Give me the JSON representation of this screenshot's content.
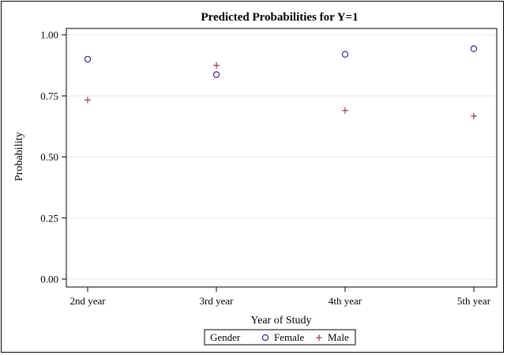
{
  "chart_data": {
    "type": "scatter",
    "title": "Predicted Probabilities for Y=1",
    "xlabel": "Year of Study",
    "ylabel": "Probability",
    "categories": [
      "2nd year",
      "3rd year",
      "4th year",
      "5th year"
    ],
    "ylim": [
      0.0,
      1.0
    ],
    "yticks": [
      "0.00",
      "0.25",
      "0.50",
      "0.75",
      "1.00"
    ],
    "grid": true,
    "legend": {
      "title": "Gender",
      "placement": "bottom-center"
    },
    "series": [
      {
        "name": "Female",
        "marker": "circle",
        "color": "#2a2ab0",
        "values": [
          0.9,
          0.837,
          0.92,
          0.943
        ]
      },
      {
        "name": "Male",
        "marker": "plus",
        "color": "#b03040",
        "values": [
          0.733,
          0.875,
          0.69,
          0.667
        ]
      }
    ]
  }
}
